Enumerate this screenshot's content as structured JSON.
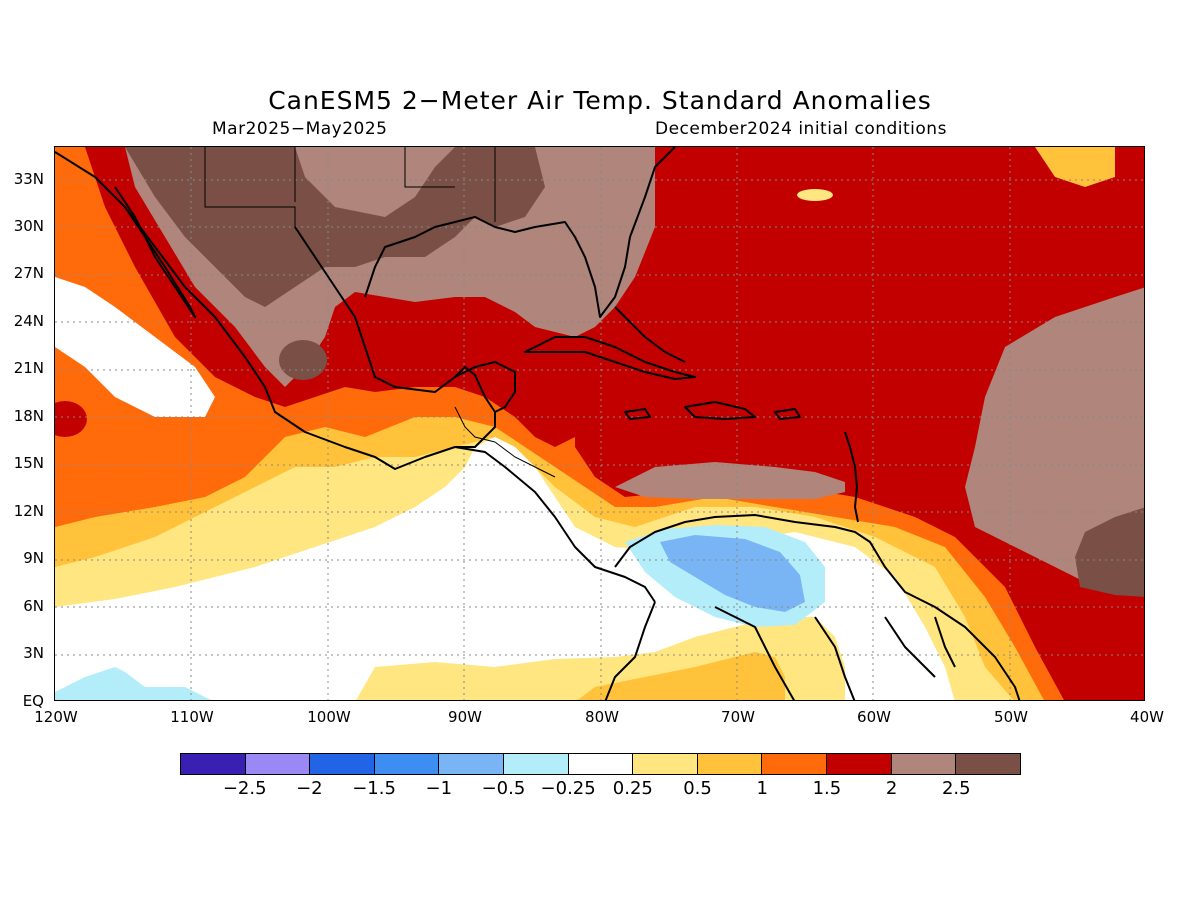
{
  "title": "CanESM5 2−Meter Air Temp. Standard Anomalies",
  "subtitle_left": "Mar2025−May2025",
  "subtitle_right": "December2024 initial conditions",
  "lat_labels": [
    "33N",
    "30N",
    "27N",
    "24N",
    "21N",
    "18N",
    "15N",
    "12N",
    "9N",
    "6N",
    "3N",
    "EQ"
  ],
  "lon_labels": [
    "120W",
    "110W",
    "100W",
    "90W",
    "80W",
    "70W",
    "60W",
    "50W",
    "40W"
  ],
  "colorbar": {
    "colors": [
      "#3a1fb3",
      "#9a88f5",
      "#2264e6",
      "#3d8ef0",
      "#79b5f5",
      "#b4edfa",
      "#ffffff",
      "#ffe680",
      "#ffc23a",
      "#ff6a0a",
      "#c20000",
      "#b0857b",
      "#7a4f45"
    ],
    "labels": [
      "−2.5",
      "−2",
      "−1.5",
      "−1",
      "−0.5",
      "−0.25",
      "0.25",
      "0.5",
      "1",
      "1.5",
      "2",
      "2.5"
    ]
  },
  "map_colors": {
    "white": "#ffffff",
    "light_cyan": "#b4edfa",
    "light_blue": "#79b5f5",
    "yellow": "#ffe680",
    "gold": "#ffc23a",
    "orange": "#ff6a0a",
    "red": "#c20000",
    "brown": "#b0857b",
    "dark_brown": "#7a4f45",
    "coast": "#000000",
    "grid": "#888888"
  }
}
